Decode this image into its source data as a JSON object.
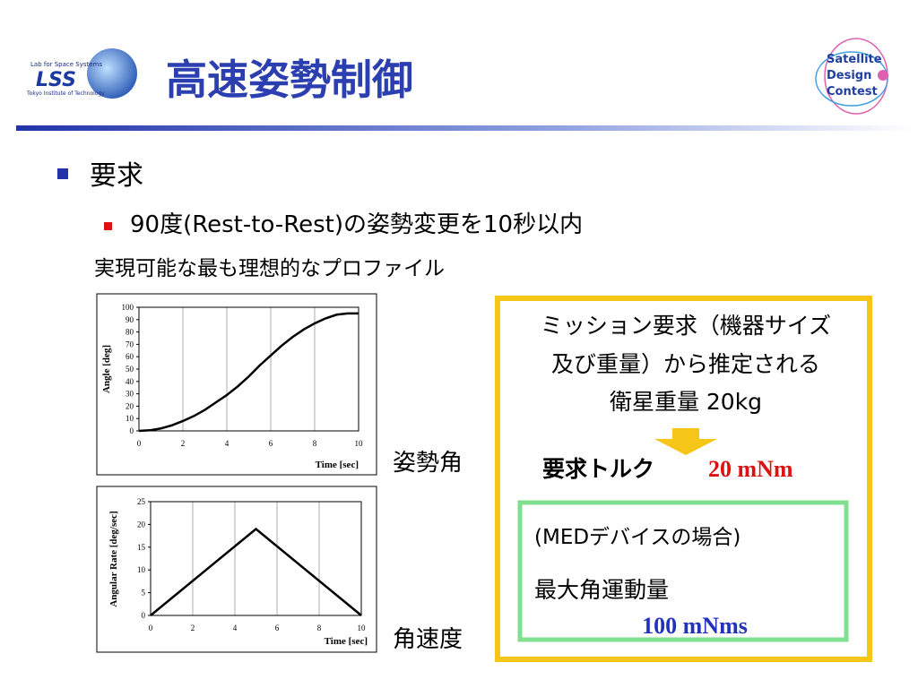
{
  "header": {
    "title": "高速姿勢制御",
    "logo_left": {
      "line1": "Lab for Space Systems",
      "mark": "LSS",
      "line2": "Tokyo Institute of Technology"
    },
    "logo_right": {
      "line1": "Satellite",
      "line2": "Design",
      "line3": "Contest"
    }
  },
  "bullets": {
    "main": "要求",
    "sub": "90度(Rest-to-Rest)の姿勢変更を10秒以内",
    "note": "実現可能な最も理想的なプロファイル"
  },
  "chart_labels": [
    "姿勢角",
    "角速度"
  ],
  "requirement_box": {
    "lines": [
      "ミッション要求（機器サイズ",
      "及び重量）から推定される",
      "衛星重量 20kg"
    ],
    "torque_label": "要求トルク",
    "torque_value": "20 mNm",
    "med": {
      "line1": "(MEDデバイスの場合)",
      "line2": "最大角運動量",
      "value": "100 mNms"
    }
  },
  "chart_data": [
    {
      "type": "line",
      "xlabel": "Time [sec]",
      "ylabel": "Angle [deg]",
      "x": [
        0,
        0.5,
        1,
        1.5,
        2,
        2.5,
        3,
        3.5,
        4,
        4.5,
        5,
        5.5,
        6,
        6.5,
        7,
        7.5,
        8,
        8.5,
        9,
        9.5,
        10
      ],
      "series": [
        {
          "color": "#000000",
          "values": [
            0,
            0.5,
            2,
            4.5,
            8,
            12,
            17,
            23,
            29,
            36,
            44,
            53,
            61,
            69,
            76,
            82,
            87,
            91,
            94,
            95,
            95
          ]
        }
      ],
      "xlim": [
        0,
        10
      ],
      "xticks": [
        0,
        2,
        4,
        6,
        8,
        10
      ],
      "ylim": [
        0,
        100
      ],
      "yticks": [
        0,
        10,
        20,
        30,
        40,
        50,
        60,
        70,
        80,
        90,
        100
      ],
      "grid": "x"
    },
    {
      "type": "line",
      "xlabel": "Time [sec]",
      "ylabel": "Angular Rate [deg/sec]",
      "x": [
        0,
        5,
        10
      ],
      "series": [
        {
          "color": "#000000",
          "values": [
            0,
            19,
            0
          ]
        }
      ],
      "xlim": [
        0,
        10
      ],
      "xticks": [
        0,
        2,
        4,
        6,
        8,
        10
      ],
      "ylim": [
        0,
        25
      ],
      "yticks": [
        0,
        5,
        10,
        15,
        20,
        25
      ],
      "grid": "x"
    }
  ]
}
